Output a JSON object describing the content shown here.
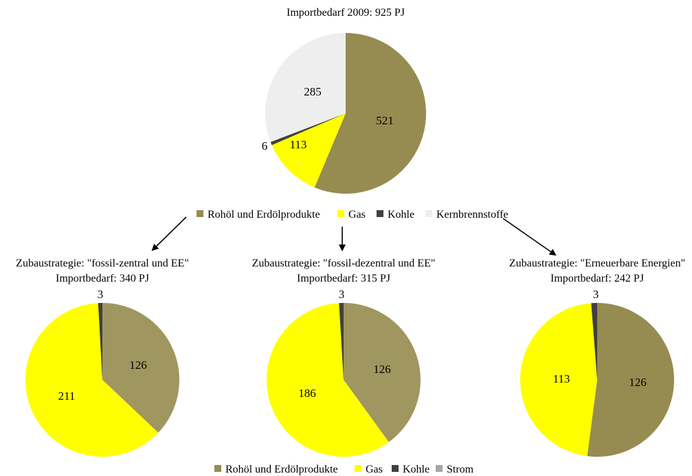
{
  "colors": {
    "oil": "#968c52",
    "gas": "#ffff00",
    "coal": "#404040",
    "nuclear": "#eeeeee",
    "power": "#a6a6a6"
  },
  "legend_top": [
    "Rohöl und Erdölprodukte",
    "Gas",
    "Kohle",
    "Kernbrennstoffe"
  ],
  "legend_bottom": [
    "Rohöl und Erdölprodukte",
    "Gas",
    "Kohle",
    "Strom"
  ],
  "chart_data": [
    {
      "type": "pie",
      "title": [
        "Importbedarf 2009: 925 PJ"
      ],
      "categories": [
        "Rohöl und Erdölprodukte",
        "Gas",
        "Kohle",
        "Kernbrennstoffe"
      ],
      "values": [
        521,
        113,
        6,
        285
      ],
      "colors": [
        "#968c52",
        "#ffff00",
        "#404040",
        "#eeeeee"
      ]
    },
    {
      "type": "pie",
      "title": [
        "Zubaustrategie: \"fossil-zentral und EE\"",
        "Importbedarf: 340 PJ"
      ],
      "categories": [
        "Rohöl und Erdölprodukte",
        "Gas",
        "Kohle"
      ],
      "values": [
        126,
        211,
        3
      ],
      "colors": [
        "#a09660",
        "#ffff00",
        "#404040"
      ]
    },
    {
      "type": "pie",
      "title": [
        "Zubaustrategie: \"fossil-dezentral und EE\"",
        "Importbedarf: 315 PJ"
      ],
      "categories": [
        "Rohöl und Erdölprodukte",
        "Gas",
        "Kohle"
      ],
      "values": [
        126,
        186,
        3
      ],
      "colors": [
        "#a09660",
        "#ffff00",
        "#404040"
      ]
    },
    {
      "type": "pie",
      "title": [
        "Zubaustrategie: \"Erneuerbare Energien\"",
        "Importbedarf: 242 PJ"
      ],
      "categories": [
        "Rohöl und Erdölprodukte",
        "Gas",
        "Kohle"
      ],
      "values": [
        126,
        113,
        3
      ],
      "colors": [
        "#968c52",
        "#ffff00",
        "#404040"
      ]
    }
  ]
}
